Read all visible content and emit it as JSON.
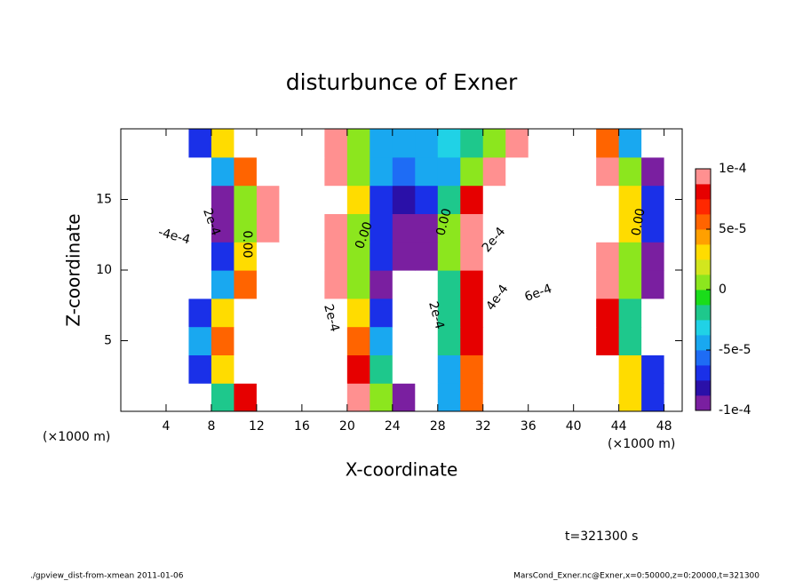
{
  "chart_data": {
    "type": "filled-contour",
    "title": "disturbunce of Exner",
    "x_label": "X-coordinate",
    "y_label": "Z-coordinate",
    "x_unit": "(×1000 m)",
    "time_label": "t=321300 s",
    "footer_left": "./gpview_dist-from-xmean  2011-01-06",
    "footer_right": "MarsCond_Exner.nc@Exner,x=0:50000,z=0:20000,t=321300",
    "xlim": [
      0,
      49.6
    ],
    "ylim": [
      0,
      20
    ],
    "xticks": [
      4,
      8,
      12,
      16,
      20,
      24,
      28,
      32,
      36,
      40,
      44,
      48
    ],
    "yticks": [
      5,
      10,
      15
    ],
    "clim": [
      -0.0001,
      0.0001
    ],
    "cticks": [
      {
        "value": 0.0001,
        "label": "1e-4"
      },
      {
        "value": 5e-05,
        "label": "5e-5"
      },
      0,
      {
        "value": -5e-05,
        "label": "-5e-5"
      },
      {
        "value": -0.0001,
        "label": "-1e-4"
      }
    ],
    "colormap": [
      "#7a1fa0",
      "#2a10a8",
      "#1a30e8",
      "#1e6cf5",
      "#19a8f0",
      "#20d2e6",
      "#1ec88c",
      "#1adc1a",
      "#8ce61e",
      "#d2e61e",
      "#ffdc00",
      "#ffa000",
      "#ff6400",
      "#ff2800",
      "#e60000",
      "#ff9090"
    ],
    "contour_labels": [
      "2e-4",
      "-4e-4",
      "0.00",
      "0.00",
      "2e-4",
      "0.00",
      "2e-4",
      "2e-4",
      "4e-4",
      "6e-4",
      "0.00"
    ],
    "x": [
      1,
      3,
      5,
      7,
      9,
      11,
      13,
      15,
      17,
      19,
      21,
      23,
      25,
      27,
      29,
      31,
      33,
      35,
      37,
      39,
      41,
      43,
      45,
      47,
      49
    ],
    "y": [
      1,
      3,
      5,
      7,
      9,
      11,
      13,
      15,
      17,
      19
    ],
    "z": [
      [
        -0.0003,
        -0.0003,
        -0.0003,
        -0.000125,
        -2.5e-05,
        7.5e-05,
        0.0002,
        0.0002,
        0.0002,
        0.0002,
        0.0001,
        0,
        -0.0001,
        -0.00015,
        -5e-05,
        5e-05,
        0.00015,
        0.0004,
        0.0004,
        0.0004,
        0.0004,
        0.000125,
        2.5e-05,
        -7.5e-05,
        -0.000175
      ],
      [
        -0.0003,
        -0.0003,
        -0.000175,
        -7.5e-05,
        2.5e-05,
        0.000125,
        0.0002,
        0.0002,
        0.0002,
        0.0002,
        7.5e-05,
        -2.5e-05,
        -0.000125,
        -0.00015,
        -5e-05,
        5e-05,
        0.00015,
        0.0004,
        0.0004,
        0.0004,
        0.0004,
        0.000125,
        2.5e-05,
        -7.5e-05,
        -0.000175
      ],
      [
        -0.0003,
        -0.00025,
        -0.00015,
        -5e-05,
        5e-05,
        0.00015,
        0.0002,
        0.0002,
        0.0002,
        0.0002,
        5e-05,
        -5e-05,
        -0.00015,
        -0.000125,
        -2.5e-05,
        7.5e-05,
        0.000175,
        0.0004,
        0.0004,
        0.0004,
        0.0004,
        7.5e-05,
        -2.5e-05,
        -0.000125,
        -0.00025
      ],
      [
        -0.0003,
        -0.0003,
        -0.000175,
        -7.5e-05,
        2.5e-05,
        0.000125,
        0.0002,
        0.0002,
        0.0002,
        0.0002,
        2.5e-05,
        -7.5e-05,
        -0.000175,
        -0.000125,
        -2.5e-05,
        7.5e-05,
        0.000175,
        0.0004,
        0.0004,
        0.0004,
        0.0004,
        7.5e-05,
        -2.5e-05,
        -0.000125,
        -0.00025
      ],
      [
        -0.0003,
        -0.0003,
        -0.00025,
        -0.00015,
        -5e-05,
        5e-05,
        0.00015,
        0.0002,
        0.0002,
        0.0001,
        0,
        -0.0001,
        -0.00015,
        -0.000125,
        -2.5e-05,
        7.5e-05,
        0.000175,
        0.0004,
        0.0004,
        0.0004,
        0.0004,
        0.0001,
        0,
        -0.0001,
        -0.0002
      ],
      [
        -0.0003,
        -0.0003,
        -0.00025,
        -0.000175,
        -7.5e-05,
        2.5e-05,
        0.000125,
        0.0002,
        0.0002,
        0.0001,
        0,
        -7.5e-05,
        -0.0001,
        -9e-05,
        0,
        0.0001,
        0.0002,
        0.0003,
        0.0003,
        0.0003,
        0.0003,
        0.0001,
        0,
        -0.0001,
        -0.0002
      ],
      [
        -0.0002,
        -0.0002,
        -0.0002,
        -0.0002,
        -0.0001,
        0,
        0.0001,
        0.0002,
        0.0002,
        0.0001,
        0,
        -7.5e-05,
        -0.0001,
        -9e-05,
        0,
        0.0001,
        0.0002,
        0.0002,
        0.0002,
        0.0002,
        0.0002,
        0.000125,
        2.5e-05,
        -7.5e-05,
        -0.000175
      ],
      [
        -0.0002,
        -0.0002,
        -0.0002,
        -0.0002,
        -0.0001,
        0,
        0.0001,
        0.0002,
        0.0002,
        0.000125,
        2.5e-05,
        -7.5e-05,
        -8e-05,
        -7e-05,
        -2.5e-05,
        7.5e-05,
        0.000175,
        0.0002,
        0.0002,
        0.0002,
        0.0002,
        0.000125,
        2.5e-05,
        -7.5e-05,
        -0.000175
      ],
      [
        -0.0002,
        -0.0002,
        -0.0002,
        -0.00015,
        -5e-05,
        5e-05,
        0.00015,
        0.0002,
        0.0002,
        0.0001,
        0,
        -5e-05,
        -6e-05,
        -5e-05,
        -4e-05,
        0,
        0.0001,
        0.0002,
        0.0002,
        0.0002,
        0.0002,
        0.0001,
        0,
        -0.0001,
        -0.0002
      ],
      [
        -0.0002,
        -0.0002,
        -0.0002,
        -7.5e-05,
        2.5e-05,
        0.000125,
        0.0002,
        0.0002,
        0.0002,
        0.0001,
        0,
        -5e-05,
        -5e-05,
        -4e-05,
        -3e-05,
        -2e-05,
        0,
        0.0001,
        0.0002,
        0.0002,
        0.0002,
        5e-05,
        -5e-05,
        -0.00015,
        -0.0002
      ]
    ]
  }
}
